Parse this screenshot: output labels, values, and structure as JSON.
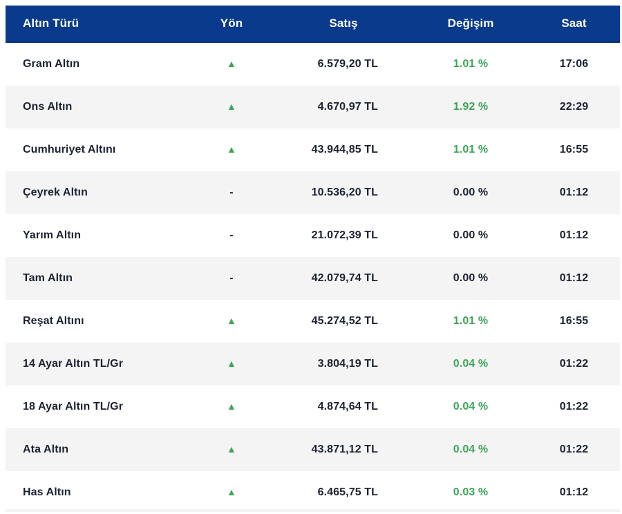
{
  "colors": {
    "header_bg": "#0a3a8c",
    "header_text": "#ffffff",
    "row_bg": "#ffffff",
    "row_alt_bg": "#f4f4f5",
    "text": "#1b2230",
    "positive_green": "#3ca556"
  },
  "icons": {
    "up_glyph": "▲",
    "flat_glyph": "-"
  },
  "table": {
    "columns": [
      {
        "key": "name",
        "label": "Altın Türü"
      },
      {
        "key": "direction",
        "label": "Yön"
      },
      {
        "key": "price",
        "label": "Satış"
      },
      {
        "key": "change",
        "label": "Değişim"
      },
      {
        "key": "time",
        "label": "Saat"
      }
    ],
    "rows": [
      {
        "name": "Gram Altın",
        "direction": "up",
        "price": "6.579,20 TL",
        "change": "1.01 %",
        "positive": true,
        "time": "17:06"
      },
      {
        "name": "Ons Altın",
        "direction": "up",
        "price": "4.670,97 TL",
        "change": "1.92 %",
        "positive": true,
        "time": "22:29"
      },
      {
        "name": "Cumhuriyet Altını",
        "direction": "up",
        "price": "43.944,85 TL",
        "change": "1.01 %",
        "positive": true,
        "time": "16:55"
      },
      {
        "name": "Çeyrek Altın",
        "direction": "flat",
        "price": "10.536,20 TL",
        "change": "0.00 %",
        "positive": false,
        "time": "01:12"
      },
      {
        "name": "Yarım Altın",
        "direction": "flat",
        "price": "21.072,39 TL",
        "change": "0.00 %",
        "positive": false,
        "time": "01:12"
      },
      {
        "name": "Tam Altın",
        "direction": "flat",
        "price": "42.079,74 TL",
        "change": "0.00 %",
        "positive": false,
        "time": "01:12"
      },
      {
        "name": "Reşat Altını",
        "direction": "up",
        "price": "45.274,52 TL",
        "change": "1.01 %",
        "positive": true,
        "time": "16:55"
      },
      {
        "name": "14 Ayar Altın TL/Gr",
        "direction": "up",
        "price": "3.804,19 TL",
        "change": "0.04 %",
        "positive": true,
        "time": "01:22"
      },
      {
        "name": "18 Ayar Altın TL/Gr",
        "direction": "up",
        "price": "4.874,64 TL",
        "change": "0.04 %",
        "positive": true,
        "time": "01:22"
      },
      {
        "name": "Ata Altın",
        "direction": "up",
        "price": "43.871,12 TL",
        "change": "0.04 %",
        "positive": true,
        "time": "01:22"
      },
      {
        "name": "Has Altın",
        "direction": "up",
        "price": "6.465,75 TL",
        "change": "0.03 %",
        "positive": true,
        "time": "01:12"
      }
    ]
  }
}
